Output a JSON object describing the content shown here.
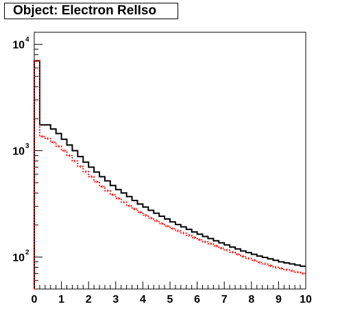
{
  "title": "Object: Electron RelIso",
  "chart_data": {
    "type": "line",
    "xlim": [
      0,
      10
    ],
    "ylim": [
      50,
      13000
    ],
    "y_scale": "log",
    "grid": false,
    "x_ticks": [
      "0",
      "1",
      "2",
      "3",
      "4",
      "5",
      "6",
      "7",
      "8",
      "9",
      "10"
    ],
    "y_ticks": [
      {
        "base": "10",
        "exp": "2",
        "value": 100
      },
      {
        "base": "10",
        "exp": "3",
        "value": 1000
      },
      {
        "base": "10",
        "exp": "4",
        "value": 10000
      }
    ],
    "bin_width": 0.2,
    "series": [
      {
        "color": "#000000",
        "style": "solid-step",
        "values": [
          7000,
          1750,
          1750,
          1600,
          1450,
          1280,
          1130,
          1000,
          880,
          780,
          700,
          630,
          570,
          520,
          470,
          430,
          400,
          370,
          340,
          315,
          295,
          275,
          258,
          242,
          228,
          214,
          202,
          192,
          182,
          172,
          164,
          156,
          149,
          142,
          136,
          130,
          124,
          119,
          114,
          110,
          106,
          102,
          99,
          96,
          93,
          90,
          88,
          86,
          84,
          82
        ]
      },
      {
        "color": "#ff0000",
        "style": "dotted-step-with-errors",
        "values": [
          7000,
          1360,
          1300,
          1200,
          1100,
          1000,
          900,
          800,
          710,
          635,
          570,
          510,
          460,
          420,
          385,
          355,
          328,
          303,
          283,
          264,
          247,
          232,
          219,
          206,
          195,
          185,
          176,
          168,
          160,
          152,
          145,
          139,
          133,
          127,
          121,
          116,
          111,
          106,
          101,
          97,
          93,
          89,
          86,
          83,
          80,
          78,
          76,
          74,
          72,
          70
        ]
      }
    ]
  }
}
